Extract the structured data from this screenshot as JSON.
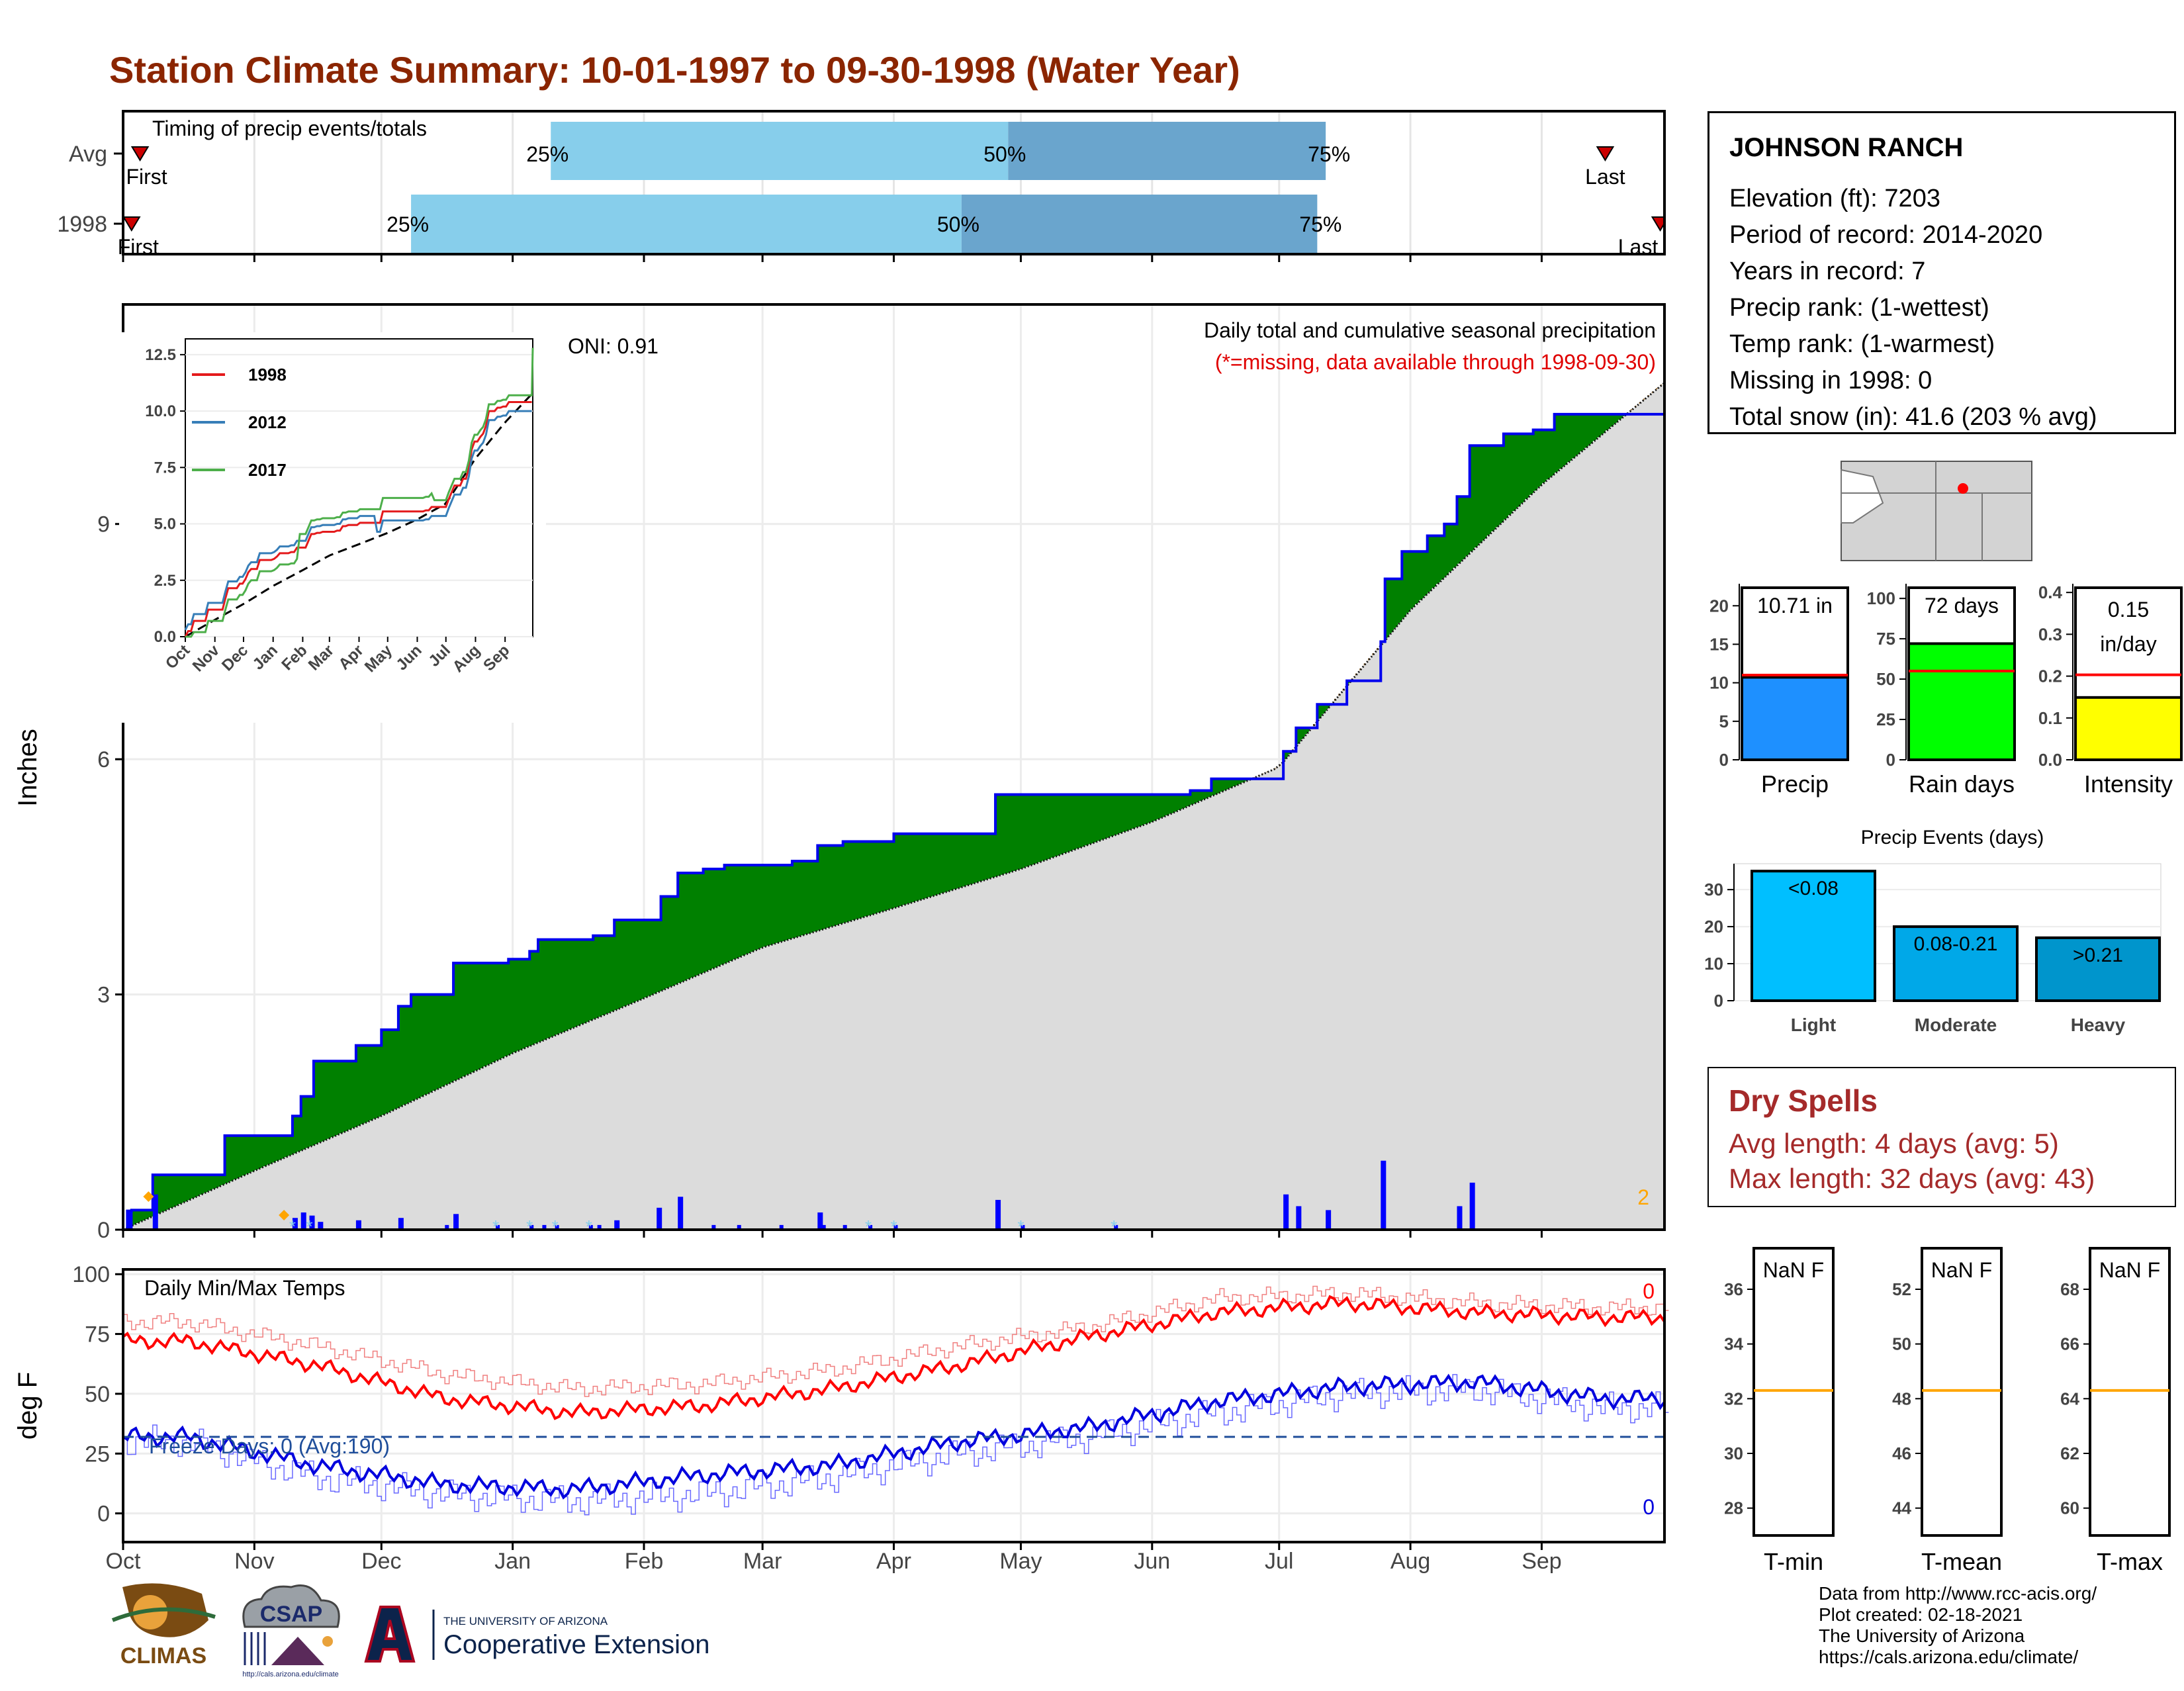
{
  "title": "Station Climate Summary: 10-01-1997 to 09-30-1998 (Water Year)",
  "timing": {
    "panel_label": "Timing of precip events/totals",
    "rows": [
      {
        "label": "Avg",
        "first_label": "First",
        "last_label": "Last",
        "p25": "25%",
        "p50": "50%",
        "p75": "75%",
        "first_doy": 4,
        "q25_doy": 101,
        "q50_doy": 209,
        "q75_doy": 284,
        "last_doy": 350
      },
      {
        "label": "1998",
        "first_label": "First",
        "last_label": "Last",
        "p25": "25%",
        "p50": "50%",
        "p75": "75%",
        "first_doy": 2,
        "q25_doy": 68,
        "q50_doy": 198,
        "q75_doy": 282,
        "last_doy": 363
      }
    ]
  },
  "precip_panel": {
    "ylabel": "Inches",
    "oni": "ONI: 0.91",
    "caption1": "Daily total and cumulative seasonal precipitation",
    "caption2": "(*=missing, data available through 1998-09-30)",
    "corner_count": "2",
    "yticks": [
      "0",
      "3",
      "6",
      "9"
    ],
    "ymax": 11.8
  },
  "temp_panel": {
    "ylabel": "deg F",
    "title": "Daily Min/Max Temps",
    "freeze_label": "Freeze Days: 0 (Avg:190)",
    "top_count": "0",
    "bottom_count": "0",
    "yticks": [
      "0",
      "25",
      "50",
      "75",
      "100"
    ],
    "ylim": [
      -12,
      102
    ],
    "freeze_line": 32
  },
  "months": [
    "Oct",
    "Nov",
    "Dec",
    "Jan",
    "Feb",
    "Mar",
    "Apr",
    "May",
    "Jun",
    "Jul",
    "Aug",
    "Sep"
  ],
  "inset": {
    "yticks": [
      "0.0",
      "2.5",
      "5.0",
      "7.5",
      "10.0",
      "12.5"
    ],
    "months": [
      "Oct",
      "Nov",
      "Dec",
      "Jan",
      "Feb",
      "Mar",
      "Apr",
      "May",
      "Jun",
      "Jul",
      "Aug",
      "Sep"
    ],
    "legend": [
      {
        "name": "1998",
        "color": "#e41a1c"
      },
      {
        "name": "2012",
        "color": "#377eb8"
      },
      {
        "name": "2017",
        "color": "#4daf4a"
      }
    ]
  },
  "station": {
    "name": "JOHNSON RANCH",
    "lines": [
      "Elevation (ft): 7203",
      "Period of record: 2014-2020",
      "Years in record: 7",
      "Precip rank:  (1-wettest)",
      "Temp rank:  (1-warmest)",
      "Missing in 1998: 0",
      "Total snow (in): 41.6 (203 % avg)"
    ]
  },
  "summary_bars": [
    {
      "label": "Precip",
      "value_label": "10.71 in",
      "value": 10.71,
      "avg": 11.0,
      "ymax": 22,
      "yticks": [
        "0",
        "5",
        "10",
        "15",
        "20"
      ],
      "tick_values": [
        0,
        5,
        10,
        15,
        20
      ],
      "color": "#1e90ff"
    },
    {
      "label": "Rain days",
      "value_label": "72 days",
      "value": 72,
      "avg": 55,
      "ymax": 105,
      "yticks": [
        "0",
        "25",
        "50",
        "75",
        "100"
      ],
      "tick_values": [
        0,
        25,
        50,
        75,
        100
      ],
      "color": "#00ff00"
    },
    {
      "label": "Intensity",
      "value_label": "0.15",
      "value_label2": "in/day",
      "value": 0.149,
      "avg": 0.203,
      "ymax": 0.405,
      "yticks": [
        "0.0",
        "0.1",
        "0.2",
        "0.3",
        "0.4"
      ],
      "tick_values": [
        0,
        0.1,
        0.2,
        0.3,
        0.4
      ],
      "color": "#ffff00"
    }
  ],
  "precip_events": {
    "title": "Precip Events (days)",
    "yticks": [
      "0",
      "10",
      "20",
      "30"
    ],
    "ymax": 37,
    "bars": [
      {
        "label": "Light",
        "value_label": "<0.08",
        "value": 35,
        "color": "#00bfff"
      },
      {
        "label": "Moderate",
        "value_label": "0.08-0.21",
        "value": 20,
        "color": "#00a8e8"
      },
      {
        "label": "Heavy",
        "value_label": ">0.21",
        "value": 17,
        "color": "#0095cc"
      }
    ]
  },
  "dry_spells": {
    "title": "Dry Spells",
    "avg": "Avg length: 4 days (avg: 5)",
    "max": "Max length: 32 days (avg: 43)",
    "color": "#a52a2a"
  },
  "temp_boxes": [
    {
      "label": "T-min",
      "value": "NaN F",
      "yticks": [
        "28",
        "30",
        "32",
        "34",
        "36"
      ],
      "ylim": [
        27,
        37.5
      ],
      "avg": 32.3
    },
    {
      "label": "T-mean",
      "value": "NaN F",
      "yticks": [
        "44",
        "46",
        "48",
        "50",
        "52"
      ],
      "ylim": [
        43,
        53.5
      ],
      "avg": 48.3
    },
    {
      "label": "T-max",
      "value": "NaN F",
      "yticks": [
        "60",
        "62",
        "64",
        "66",
        "68"
      ],
      "ylim": [
        59,
        69.5
      ],
      "avg": 64.3
    }
  ],
  "credits": [
    "Data from http://www.rcc-acis.org/",
    "Plot created: 02-18-2021",
    "The University of Arizona",
    "https://cals.arizona.edu/climate/"
  ],
  "logos": {
    "climas": "CLIMAS",
    "csap": "CSAP",
    "csap_url": "http://cals.arizona.edu/climate",
    "ua_small": "THE UNIVERSITY OF ARIZONA",
    "ua_big": "Cooperative Extension"
  },
  "chart_data": {
    "type": "area",
    "title": "Daily total and cumulative seasonal precipitation",
    "xlabel": "",
    "ylabel": "Inches",
    "x_start": "1997-10-01",
    "x_end": "1998-09-30",
    "ylim": [
      0,
      11.8
    ],
    "cumulative_1998_steps": [
      [
        "1997-10-01",
        0.0
      ],
      [
        "1997-10-02",
        0.24
      ],
      [
        "1997-10-03",
        0.25
      ],
      [
        "1997-10-08",
        0.7
      ],
      [
        "1997-10-25",
        1.2
      ],
      [
        "1997-11-10",
        1.45
      ],
      [
        "1997-11-12",
        1.7
      ],
      [
        "1997-11-15",
        2.15
      ],
      [
        "1997-11-25",
        2.35
      ],
      [
        "1997-12-01",
        2.55
      ],
      [
        "1997-12-05",
        2.85
      ],
      [
        "1997-12-08",
        3.0
      ],
      [
        "1997-12-18",
        3.4
      ],
      [
        "1997-12-31",
        3.45
      ],
      [
        "1998-01-05",
        3.55
      ],
      [
        "1998-01-07",
        3.7
      ],
      [
        "1998-01-20",
        3.75
      ],
      [
        "1998-01-25",
        3.95
      ],
      [
        "1998-02-05",
        4.25
      ],
      [
        "1998-02-09",
        4.55
      ],
      [
        "1998-02-15",
        4.6
      ],
      [
        "1998-02-20",
        4.65
      ],
      [
        "1998-03-08",
        4.7
      ],
      [
        "1998-03-14",
        4.9
      ],
      [
        "1998-03-20",
        4.95
      ],
      [
        "1998-04-01",
        5.05
      ],
      [
        "1998-04-25",
        5.55
      ],
      [
        "1998-06-05",
        5.55
      ],
      [
        "1998-06-10",
        5.6
      ],
      [
        "1998-06-15",
        5.75
      ],
      [
        "1998-07-01",
        5.75
      ],
      [
        "1998-07-02",
        6.1
      ],
      [
        "1998-07-05",
        6.4
      ],
      [
        "1998-07-10",
        6.7
      ],
      [
        "1998-07-17",
        7.0
      ],
      [
        "1998-07-25",
        7.5
      ],
      [
        "1998-07-26",
        8.3
      ],
      [
        "1998-07-30",
        8.65
      ],
      [
        "1998-08-05",
        8.85
      ],
      [
        "1998-08-09",
        9.0
      ],
      [
        "1998-08-12",
        9.35
      ],
      [
        "1998-08-15",
        10.0
      ],
      [
        "1998-08-23",
        10.15
      ],
      [
        "1998-08-30",
        10.2
      ],
      [
        "1998-09-04",
        10.4
      ],
      [
        "1998-09-30",
        10.71
      ]
    ],
    "average_cumulative_points": [
      [
        "1997-10-01",
        0.0
      ],
      [
        "1997-11-01",
        0.75
      ],
      [
        "1997-12-01",
        1.45
      ],
      [
        "1998-01-01",
        2.25
      ],
      [
        "1998-02-01",
        2.95
      ],
      [
        "1998-03-01",
        3.6
      ],
      [
        "1998-04-01",
        4.1
      ],
      [
        "1998-05-01",
        4.6
      ],
      [
        "1998-06-01",
        5.2
      ],
      [
        "1998-07-01",
        5.9
      ],
      [
        "1998-08-01",
        7.9
      ],
      [
        "1998-09-01",
        9.5
      ],
      [
        "1998-09-30",
        10.8
      ]
    ],
    "daily_precip_bars": [
      [
        "1997-10-02",
        0.23
      ],
      [
        "1997-10-08",
        0.45
      ],
      [
        "1997-11-10",
        0.15
      ],
      [
        "1997-11-12",
        0.22
      ],
      [
        "1997-11-14",
        0.18
      ],
      [
        "1997-11-16",
        0.1
      ],
      [
        "1997-11-25",
        0.12
      ],
      [
        "1997-12-05",
        0.15
      ],
      [
        "1997-12-18",
        0.2
      ],
      [
        "1998-01-25",
        0.12
      ],
      [
        "1998-02-04",
        0.28
      ],
      [
        "1998-02-09",
        0.42
      ],
      [
        "1998-03-14",
        0.22
      ],
      [
        "1998-04-25",
        0.38
      ],
      [
        "1998-07-02",
        0.45
      ],
      [
        "1998-07-05",
        0.3
      ],
      [
        "1998-07-12",
        0.25
      ],
      [
        "1998-07-25",
        0.88
      ],
      [
        "1998-08-15",
        0.6
      ],
      [
        "1998-08-12",
        0.3
      ]
    ],
    "temp_series": {
      "ylabel": "deg F",
      "ylim": [
        -12,
        102
      ],
      "max_1998_monthly": [
        72,
        62,
        48,
        42,
        45,
        52,
        62,
        74,
        84,
        88,
        84,
        82
      ],
      "min_1998_monthly": [
        32,
        20,
        12,
        10,
        16,
        20,
        30,
        36,
        47,
        53,
        55,
        48
      ],
      "max_avg_monthly": [
        80,
        70,
        58,
        52,
        54,
        60,
        70,
        78,
        90,
        92,
        88,
        86
      ],
      "min_avg_monthly": [
        30,
        15,
        8,
        5,
        8,
        15,
        25,
        32,
        42,
        50,
        52,
        44
      ]
    }
  }
}
